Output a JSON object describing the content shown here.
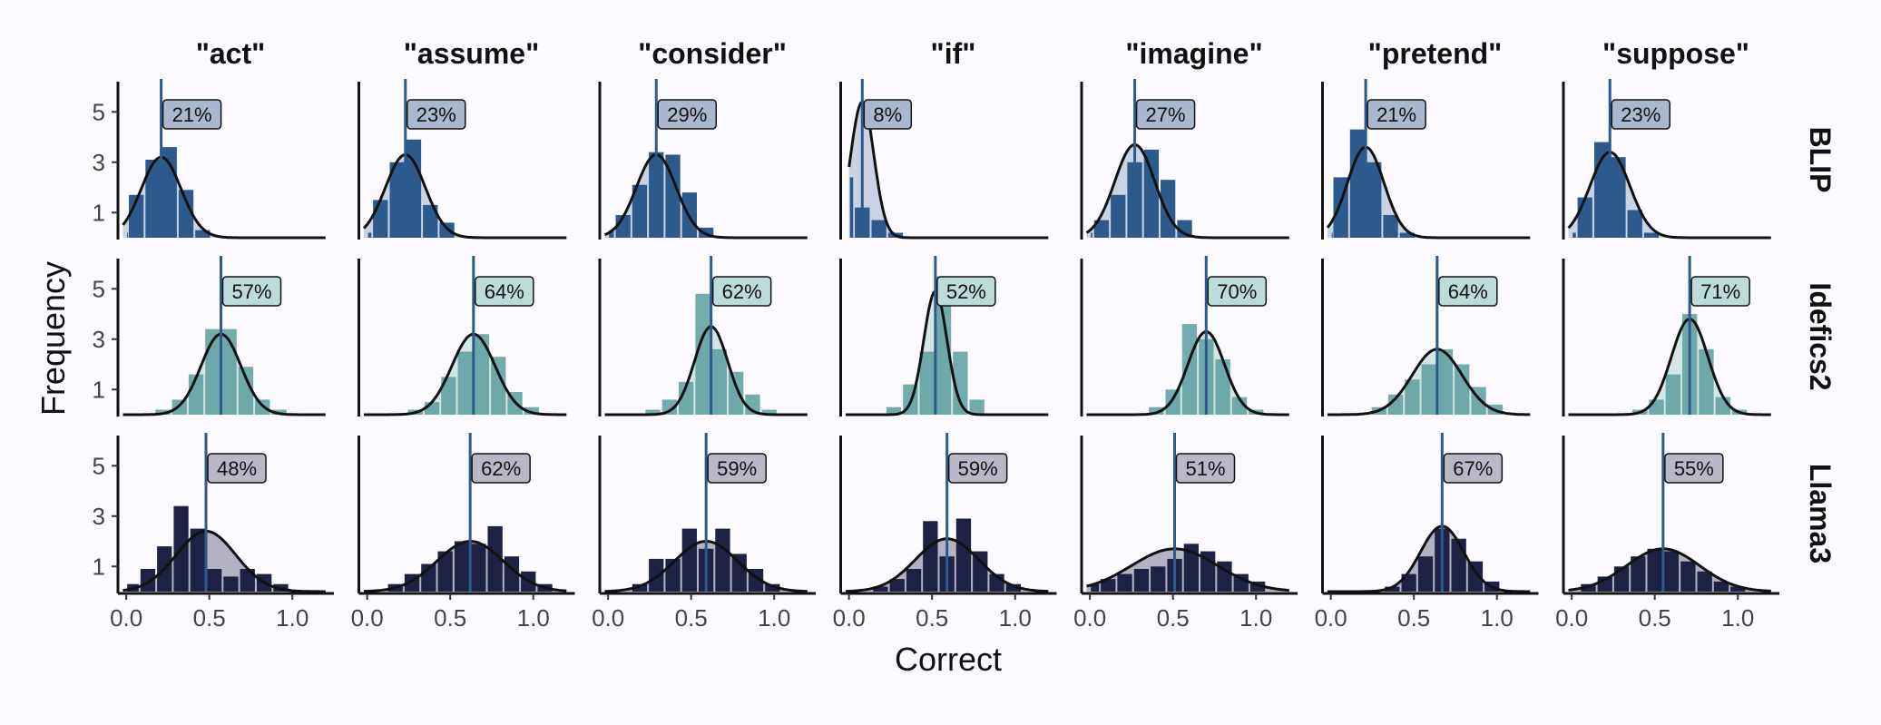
{
  "chart_data": {
    "type": "histogram-density-facet",
    "xlabel": "Correct",
    "ylabel": "Frequency",
    "xticks": [
      "0.0",
      "0.5",
      "1.0"
    ],
    "yticks": [
      "1",
      "3",
      "5"
    ],
    "xlim": [
      -0.05,
      1.25
    ],
    "ylim": [
      0,
      6.2
    ],
    "columns": [
      "\"act\"",
      "\"assume\"",
      "\"consider\"",
      "\"if\"",
      "\"imagine\"",
      "\"pretend\"",
      "\"suppose\""
    ],
    "rows": [
      {
        "name": "BLIP",
        "colors": {
          "bar": "#2c5a8c",
          "fill": "#c9d3e3",
          "label_bg": "#a9b7cf",
          "line": "#2c5a8c"
        },
        "panels": [
          {
            "mean": 0.21,
            "label": "21%",
            "sd": 0.12,
            "peak": 3.2,
            "bars": [
              0.2,
              1.7,
              3.1,
              3.6,
              1.9,
              0.3
            ]
          },
          {
            "mean": 0.23,
            "label": "23%",
            "sd": 0.12,
            "peak": 3.3,
            "bars": [
              0.2,
              1.5,
              3.0,
              3.9,
              1.3,
              0.6
            ]
          },
          {
            "mean": 0.29,
            "label": "29%",
            "sd": 0.12,
            "peak": 3.3,
            "bars": [
              0.3,
              0.9,
              2.1,
              3.4,
              3.3,
              1.8,
              0.4
            ]
          },
          {
            "mean": 0.08,
            "label": "8%",
            "sd": 0.07,
            "peak": 5.4,
            "bars": [
              5.4,
              2.4,
              1.2,
              0.7,
              0.2
            ]
          },
          {
            "mean": 0.27,
            "label": "27%",
            "sd": 0.12,
            "peak": 3.7,
            "bars": [
              0.2,
              0.7,
              1.7,
              3.0,
              3.5,
              2.3,
              0.7
            ]
          },
          {
            "mean": 0.21,
            "label": "21%",
            "sd": 0.11,
            "peak": 3.6,
            "bars": [
              0.2,
              2.4,
              4.3,
              3.0,
              0.9,
              0.2
            ]
          },
          {
            "mean": 0.23,
            "label": "23%",
            "sd": 0.12,
            "peak": 3.4,
            "bars": [
              0.2,
              1.6,
              3.8,
              3.2,
              1.1,
              0.2
            ]
          }
        ]
      },
      {
        "name": "Idefics2",
        "colors": {
          "bar": "#5a9ea0",
          "fill": "#d3e6e4",
          "label_bg": "#bcdcda",
          "line": "#2c5a8c"
        },
        "panels": [
          {
            "mean": 0.57,
            "label": "57%",
            "sd": 0.12,
            "peak": 3.2,
            "bars": [
              0.2,
              0.6,
              1.6,
              3.4,
              3.4,
              1.9,
              0.6,
              0.2
            ]
          },
          {
            "mean": 0.64,
            "label": "64%",
            "sd": 0.13,
            "peak": 3.2,
            "bars": [
              0.2,
              0.5,
              1.5,
              2.5,
              3.2,
              2.3,
              0.9,
              0.3
            ]
          },
          {
            "mean": 0.62,
            "label": "62%",
            "sd": 0.1,
            "peak": 3.5,
            "bars": [
              0.2,
              0.6,
              1.3,
              4.8,
              2.6,
              1.7,
              0.8,
              0.2
            ]
          },
          {
            "mean": 0.52,
            "label": "52%",
            "sd": 0.07,
            "peak": 4.9,
            "bars": [
              0.3,
              1.2,
              2.5,
              5.5,
              2.5,
              0.6
            ]
          },
          {
            "mean": 0.7,
            "label": "70%",
            "sd": 0.11,
            "peak": 3.3,
            "bars": [
              0.3,
              1.0,
              3.6,
              3.0,
              2.2,
              0.7,
              0.2
            ]
          },
          {
            "mean": 0.64,
            "label": "64%",
            "sd": 0.15,
            "peak": 2.6,
            "bars": [
              0.3,
              0.8,
              1.4,
              2.0,
              2.6,
              2.0,
              1.1,
              0.4
            ]
          },
          {
            "mean": 0.71,
            "label": "71%",
            "sd": 0.11,
            "peak": 3.8,
            "bars": [
              0.2,
              0.6,
              1.6,
              4.0,
              2.6,
              0.7,
              0.2
            ]
          }
        ]
      },
      {
        "name": "Llama3",
        "colors": {
          "bar": "#1d2244",
          "fill": "#b3b2c2",
          "label_bg": "#b9b8c7",
          "line": "#2c5a8c"
        },
        "panels": [
          {
            "mean": 0.48,
            "label": "48%",
            "sd": 0.18,
            "peak": 2.4,
            "bars": [
              0.3,
              0.9,
              1.8,
              3.4,
              2.5,
              0.9,
              0.6,
              0.9,
              0.7,
              0.3
            ]
          },
          {
            "mean": 0.62,
            "label": "62%",
            "sd": 0.2,
            "peak": 2.0,
            "bars": [
              0.3,
              0.7,
              1.1,
              1.6,
              2.0,
              1.9,
              2.6,
              1.4,
              0.8,
              0.3
            ]
          },
          {
            "mean": 0.59,
            "label": "59%",
            "sd": 0.19,
            "peak": 2.0,
            "bars": [
              0.3,
              1.3,
              1.3,
              2.5,
              1.7,
              2.5,
              1.5,
              0.9,
              0.3
            ]
          },
          {
            "mean": 0.59,
            "label": "59%",
            "sd": 0.19,
            "peak": 2.1,
            "bars": [
              0.2,
              0.5,
              0.9,
              2.8,
              1.4,
              2.9,
              1.6,
              0.7,
              0.3
            ]
          },
          {
            "mean": 0.51,
            "label": "51%",
            "sd": 0.26,
            "peak": 1.7,
            "bars": [
              0.3,
              0.5,
              0.7,
              0.9,
              1.0,
              1.3,
              1.9,
              1.6,
              1.2,
              0.7,
              0.4
            ]
          },
          {
            "mean": 0.67,
            "label": "67%",
            "sd": 0.13,
            "peak": 2.6,
            "bars": [
              0.2,
              0.7,
              1.4,
              2.5,
              2.1,
              1.2,
              0.4
            ]
          },
          {
            "mean": 0.55,
            "label": "55%",
            "sd": 0.22,
            "peak": 1.7,
            "bars": [
              0.3,
              0.6,
              1.0,
              1.4,
              1.7,
              1.6,
              1.2,
              0.8,
              0.4,
              0.2
            ]
          }
        ]
      }
    ]
  }
}
